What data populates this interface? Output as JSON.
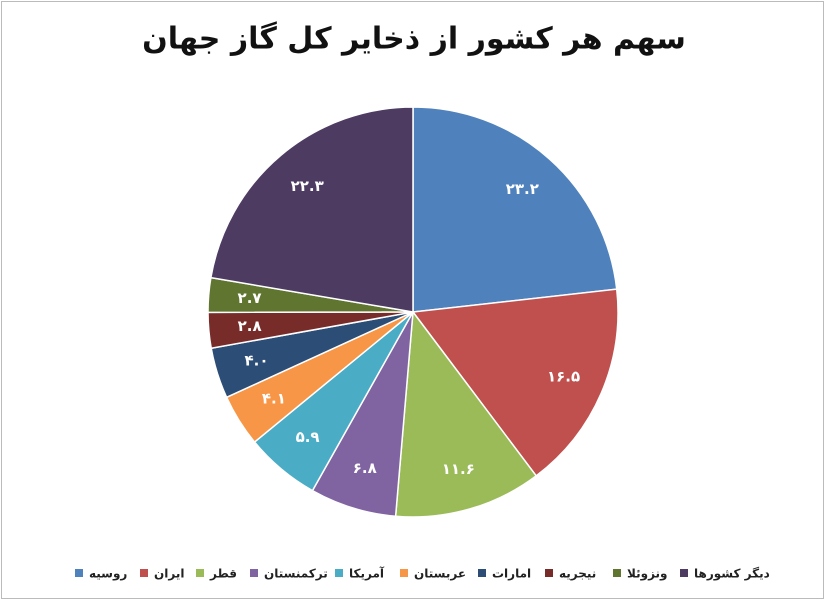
{
  "chart_data": {
    "type": "pie",
    "title": "سهم هر کشور از ذخایر کل گاز جهان",
    "categories": [
      "روسیه",
      "ایران",
      "قطر",
      "ترکمنستان",
      "آمریکا",
      "عربستان",
      "امارات",
      "نیجریه",
      "ونزوئلا",
      "دیگر کشورها"
    ],
    "values": [
      23.2,
      16.5,
      11.6,
      6.8,
      5.9,
      4.1,
      4.0,
      2.8,
      2.7,
      22.3
    ],
    "value_labels": [
      "۲۳.۲",
      "۱۶.۵",
      "۱۱.۶",
      "۶.۸",
      "۵.۹",
      "۴.۱",
      "۴.۰",
      "۲.۸",
      "۲.۷",
      "۲۲.۳"
    ],
    "colors": [
      "#4f81bd",
      "#c0504d",
      "#9bbb59",
      "#8064a2",
      "#4bacc6",
      "#f79646",
      "#2c4d75",
      "#772c2a",
      "#5f7530",
      "#4d3b62"
    ]
  }
}
